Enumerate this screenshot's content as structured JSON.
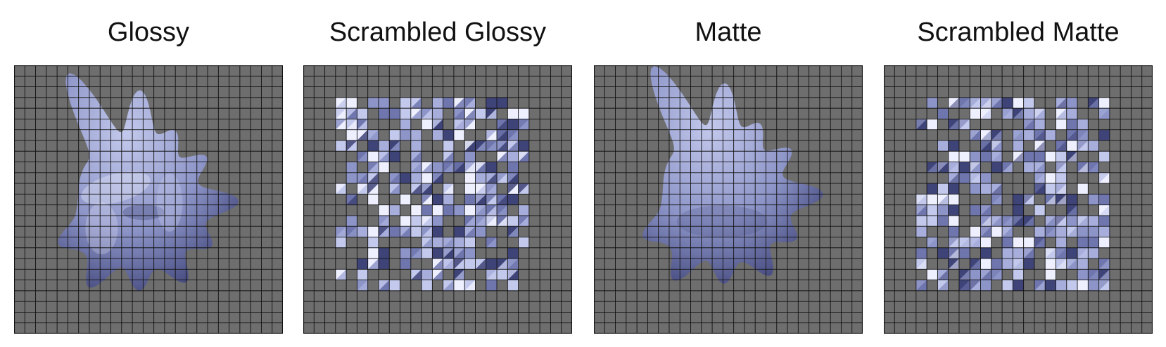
{
  "figure": {
    "panels": [
      {
        "id": "glossy",
        "title": "Glossy",
        "finish": "glossy",
        "scrambled": false
      },
      {
        "id": "scrambled-glossy",
        "title": "Scrambled Glossy",
        "finish": "glossy",
        "scrambled": true
      },
      {
        "id": "matte",
        "title": "Matte",
        "finish": "matte",
        "scrambled": false
      },
      {
        "id": "scrambled-matte",
        "title": "Scrambled Matte",
        "finish": "matte",
        "scrambled": true
      }
    ],
    "colors": {
      "background": "#6e6e6e",
      "grid_line": "#111111",
      "object_base": "#8d95c8",
      "object_light": "#c3c9ec",
      "object_dark": "#3f4478",
      "highlight": "#eef0ff"
    },
    "grid_cells": 25
  }
}
